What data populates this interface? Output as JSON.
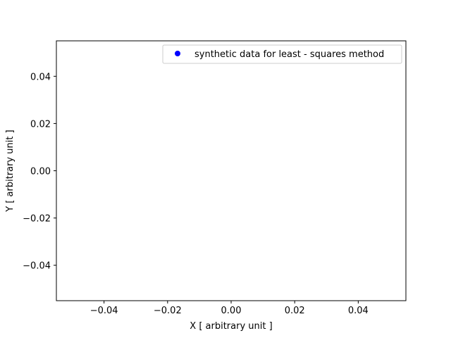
{
  "chart_data": {
    "type": "scatter",
    "title": "",
    "xlabel": "X [ arbitrary unit ]",
    "ylabel": "Y [ arbitrary unit ]",
    "xlim": [
      -0.055,
      0.055
    ],
    "ylim": [
      -0.055,
      0.055
    ],
    "xticks": [
      -0.04,
      -0.02,
      0.0,
      0.02,
      0.04
    ],
    "yticks": [
      -0.04,
      -0.02,
      0.0,
      0.02,
      0.04
    ],
    "xtick_labels": [
      "−0.04",
      "−0.02",
      "0.00",
      "0.02",
      "0.04"
    ],
    "ytick_labels": [
      "−0.04",
      "−0.02",
      "0.00",
      "0.02",
      "0.04"
    ],
    "grid": false,
    "legend_position": "top-right",
    "series": [
      {
        "name": "synthetic data for least - squares method",
        "color": "#0000ff",
        "marker": "circle",
        "x": [],
        "y": []
      }
    ]
  }
}
